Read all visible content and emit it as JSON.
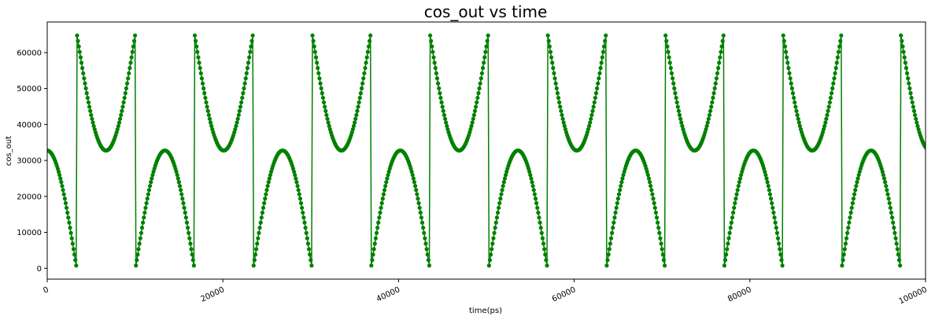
{
  "chart_data": {
    "type": "line",
    "title": "cos_out vs time",
    "xlabel": "time(ps)",
    "ylabel": "cos_out",
    "xlim": [
      0,
      100000
    ],
    "ylim": [
      -3000,
      68500
    ],
    "xticks": [
      0,
      20000,
      40000,
      60000,
      80000,
      100000
    ],
    "xtick_labels": [
      "0",
      "20000",
      "40000",
      "60000",
      "80000",
      "100000"
    ],
    "xtick_rotation_deg": 25,
    "yticks": [
      0,
      10000,
      20000,
      30000,
      40000,
      50000,
      60000
    ],
    "ytick_labels": [
      "0",
      "10000",
      "20000",
      "30000",
      "40000",
      "50000",
      "60000"
    ],
    "grid": false,
    "legend": false,
    "series": [
      {
        "color": "#008000",
        "marker": "circle",
        "period_ps": 13400,
        "segment_length_ps": 6700,
        "lower_arch": {
          "min": 0,
          "max": 32768
        },
        "upper_arch": {
          "min": 32768,
          "max": 65535
        },
        "first_jump_ps": 3350
      }
    ]
  }
}
